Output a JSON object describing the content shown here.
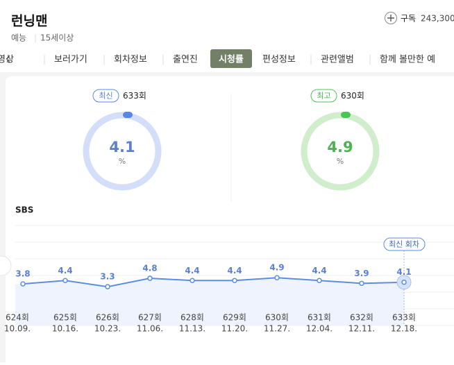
{
  "header": {
    "title": "런닝맨",
    "genre": "예능",
    "rating": "15세이상",
    "subscribe": "구독",
    "subscribers": "243,300"
  },
  "tabs": [
    "영상",
    "보러가기",
    "회차정보",
    "출연진",
    "시청률",
    "편성정보",
    "관련앨범",
    "함께 볼만한 예"
  ],
  "summary": [
    {
      "badge": "최신",
      "episode": "633회",
      "value": "4.1",
      "unit": "%"
    },
    {
      "badge": "최고",
      "episode": "630회",
      "value": "4.9",
      "unit": "%"
    }
  ],
  "chart_data": {
    "type": "line",
    "title": "SBS",
    "categories": [
      "624회",
      "625회",
      "626회",
      "627회",
      "628회",
      "629회",
      "630회",
      "631회",
      "632회",
      "633회"
    ],
    "dates": [
      "10.09.",
      "10.16.",
      "10.23.",
      "11.06.",
      "11.13.",
      "11.20.",
      "11.27.",
      "12.04.",
      "12.11.",
      "12.18."
    ],
    "values": [
      3.8,
      4.4,
      3.3,
      4.8,
      4.4,
      4.4,
      4.9,
      4.4,
      3.9,
      4.1
    ],
    "color": "#5b8de0",
    "ylim": [
      -3.6,
      14.2
    ],
    "annotation": "최신 회차"
  }
}
